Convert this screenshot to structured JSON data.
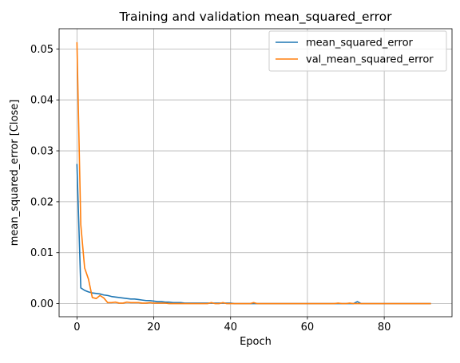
{
  "chart_data": {
    "type": "line",
    "title": "Training and validation mean_squared_error",
    "xlabel": "Epoch",
    "ylabel": "mean_squared_error [Close]",
    "xlim": [
      -4.65,
      97.65
    ],
    "ylim": [
      -0.00257,
      0.05397
    ],
    "grid": true,
    "legend_position": "top-right",
    "x_ticks": [
      0,
      20,
      40,
      60,
      80
    ],
    "x_tick_labels": [
      "0",
      "20",
      "40",
      "60",
      "80"
    ],
    "y_ticks": [
      0.0,
      0.01,
      0.02,
      0.03,
      0.04,
      0.05
    ],
    "y_tick_labels": [
      "0.00",
      "0.01",
      "0.02",
      "0.03",
      "0.04",
      "0.05"
    ],
    "series": [
      {
        "name": "mean_squared_error",
        "color": "#1f77b4",
        "x": [
          0,
          1,
          2,
          3,
          4,
          5,
          6,
          7,
          8,
          9,
          10,
          11,
          12,
          13,
          14,
          15,
          16,
          17,
          18,
          19,
          20,
          21,
          22,
          23,
          24,
          25,
          26,
          27,
          28,
          29,
          30,
          31,
          32,
          33,
          34,
          35,
          36,
          37,
          38,
          39,
          40,
          41,
          42,
          43,
          44,
          45,
          46,
          47,
          48,
          49,
          50,
          51,
          52,
          53,
          54,
          55,
          56,
          57,
          58,
          59,
          60,
          61,
          62,
          63,
          64,
          65,
          66,
          67,
          68,
          69,
          70,
          71,
          72,
          73,
          74,
          75,
          76,
          77,
          78,
          79,
          80,
          81,
          82,
          83,
          84,
          85,
          86,
          87,
          88,
          89,
          90,
          91,
          92
        ],
        "values": [
          0.0273,
          0.0031,
          0.0026,
          0.0023,
          0.0021,
          0.002,
          0.0019,
          0.0017,
          0.0016,
          0.0014,
          0.0013,
          0.0012,
          0.0011,
          0.001,
          0.0009,
          0.0009,
          0.0008,
          0.0007,
          0.0006,
          0.0006,
          0.0005,
          0.0004,
          0.0004,
          0.0003,
          0.0003,
          0.0002,
          0.0002,
          0.0002,
          0.0001,
          0.0001,
          0.0001,
          0.0001,
          0.0001,
          0.0001,
          0.0001,
          0.0001,
          0.0001,
          0.0001,
          0.0001,
          0.0001,
          0.0001,
          0.0,
          0.0,
          0.0,
          0.0,
          0.0,
          0.0,
          0.0,
          0.0,
          0.0,
          0.0,
          0.0,
          0.0,
          0.0,
          0.0,
          0.0,
          0.0,
          0.0,
          0.0,
          0.0,
          0.0,
          0.0,
          0.0,
          0.0,
          0.0,
          0.0,
          0.0,
          0.0,
          0.0,
          0.0,
          0.0,
          0.0,
          0.0,
          0.0004,
          0.0,
          0.0,
          0.0,
          0.0,
          0.0,
          0.0,
          0.0,
          0.0,
          0.0,
          0.0,
          0.0,
          0.0,
          0.0,
          0.0,
          0.0,
          0.0,
          0.0,
          0.0,
          0.0
        ]
      },
      {
        "name": "val_mean_squared_error",
        "color": "#ff7f0e",
        "x": [
          0,
          1,
          2,
          3,
          4,
          5,
          6,
          7,
          8,
          9,
          10,
          11,
          12,
          13,
          14,
          15,
          16,
          17,
          18,
          19,
          20,
          21,
          22,
          23,
          24,
          25,
          26,
          27,
          28,
          29,
          30,
          31,
          32,
          33,
          34,
          35,
          36,
          37,
          38,
          39,
          40,
          41,
          42,
          43,
          44,
          45,
          46,
          47,
          48,
          49,
          50,
          51,
          52,
          53,
          54,
          55,
          56,
          57,
          58,
          59,
          60,
          61,
          62,
          63,
          64,
          65,
          66,
          67,
          68,
          69,
          70,
          71,
          72,
          73,
          74,
          75,
          76,
          77,
          78,
          79,
          80,
          81,
          82,
          83,
          84,
          85,
          86,
          87,
          88,
          89,
          90,
          91,
          92
        ],
        "values": [
          0.0512,
          0.0155,
          0.007,
          0.0048,
          0.0012,
          0.001,
          0.0016,
          0.0011,
          0.0002,
          0.0002,
          0.0003,
          0.0001,
          0.0001,
          0.0003,
          0.0002,
          0.0002,
          0.0002,
          0.0001,
          0.0001,
          0.0002,
          0.0001,
          0.0001,
          0.0001,
          0.0001,
          0.0,
          0.0,
          0.0,
          0.0,
          0.0,
          0.0,
          0.0,
          0.0,
          0.0,
          0.0,
          0.0,
          0.0002,
          0.0,
          0.0,
          0.0002,
          0.0,
          0.0,
          0.0,
          0.0,
          0.0,
          0.0,
          0.0,
          0.0002,
          0.0,
          0.0,
          0.0,
          0.0,
          0.0,
          0.0,
          0.0,
          0.0,
          0.0,
          0.0,
          0.0,
          0.0,
          0.0,
          0.0,
          0.0,
          0.0,
          0.0,
          0.0,
          0.0,
          0.0,
          0.0,
          0.0001,
          0.0,
          0.0,
          0.0001,
          0.0,
          0.0,
          0.0,
          0.0,
          0.0,
          0.0,
          0.0,
          0.0,
          0.0,
          0.0,
          0.0,
          0.0,
          0.0,
          0.0,
          0.0,
          0.0,
          0.0,
          0.0,
          0.0,
          0.0,
          0.0
        ]
      }
    ]
  }
}
